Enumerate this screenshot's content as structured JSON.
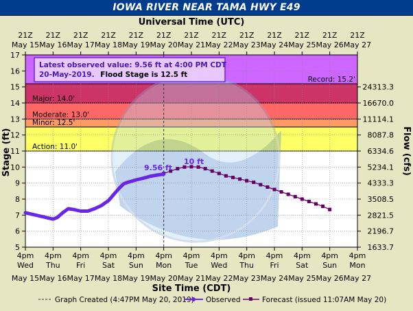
{
  "title": "IOWA RIVER NEAR TAMA HWY E49",
  "colors": {
    "observed": "#6a26e6",
    "forecast": "#660066",
    "record": "#cc66ff",
    "major": "#cc3366",
    "moderate": "#ff6666",
    "minor": "#ff9966",
    "action": "#ffff66",
    "background": "#e6e6c2",
    "title_bar": "#003c8c"
  },
  "chart_data": {
    "type": "line",
    "title": "IOWA RIVER NEAR TAMA HWY E49",
    "top_axis_label": "Universal Time (UTC)",
    "xlabel": "Site Time (CDT)",
    "ylabel": "Stage (ft)",
    "y2label": "Flow (cfs)",
    "x_range_days": [
      15,
      27
    ],
    "ylim": [
      5,
      17
    ],
    "y_ticks": [
      5,
      6,
      7,
      8,
      9,
      10,
      11,
      12,
      13,
      14,
      15,
      16,
      17
    ],
    "flow_ticks": [
      {
        "stage": 5.0,
        "label": "1633.7"
      },
      {
        "stage": 6.0,
        "label": "2196.7"
      },
      {
        "stage": 7.0,
        "label": "2821.5"
      },
      {
        "stage": 8.0,
        "label": "3508.5"
      },
      {
        "stage": 9.0,
        "label": "4333.3"
      },
      {
        "stage": 10.0,
        "label": "5234.1"
      },
      {
        "stage": 11.0,
        "label": "6334.6"
      },
      {
        "stage": 12.0,
        "label": "8087.8"
      },
      {
        "stage": 13.0,
        "label": "11114.1"
      },
      {
        "stage": 14.0,
        "label": "16670.0"
      },
      {
        "stage": 15.0,
        "label": "24313.3"
      }
    ],
    "utc_ticks": [
      {
        "time": "21Z",
        "date": "May 15"
      },
      {
        "time": "21Z",
        "date": "May 16"
      },
      {
        "time": "21Z",
        "date": "May 17"
      },
      {
        "time": "21Z",
        "date": "May 18"
      },
      {
        "time": "21Z",
        "date": "May 19"
      },
      {
        "time": "21Z",
        "date": "May 20"
      },
      {
        "time": "21Z",
        "date": "May 21"
      },
      {
        "time": "21Z",
        "date": "May 22"
      },
      {
        "time": "21Z",
        "date": "May 23"
      },
      {
        "time": "21Z",
        "date": "May 24"
      },
      {
        "time": "21Z",
        "date": "May 25"
      },
      {
        "time": "21Z",
        "date": "May 26"
      },
      {
        "time": "21Z",
        "date": "May 27"
      }
    ],
    "local_ticks": [
      {
        "time": "4pm",
        "dow": "Wed",
        "date": "May 15"
      },
      {
        "time": "4pm",
        "dow": "Thu",
        "date": "May 16"
      },
      {
        "time": "4pm",
        "dow": "Fri",
        "date": "May 17"
      },
      {
        "time": "4pm",
        "dow": "Sat",
        "date": "May 18"
      },
      {
        "time": "4pm",
        "dow": "Sun",
        "date": "May 19"
      },
      {
        "time": "4pm",
        "dow": "Mon",
        "date": "May 20"
      },
      {
        "time": "4pm",
        "dow": "Tue",
        "date": "May 21"
      },
      {
        "time": "4pm",
        "dow": "Wed",
        "date": "May 22"
      },
      {
        "time": "4pm",
        "dow": "Thu",
        "date": "May 23"
      },
      {
        "time": "4pm",
        "dow": "Fri",
        "date": "May 24"
      },
      {
        "time": "4pm",
        "dow": "Sat",
        "date": "May 25"
      },
      {
        "time": "4pm",
        "dow": "Sun",
        "date": "May 26"
      },
      {
        "time": "4pm",
        "dow": "Mon",
        "date": "May 27"
      }
    ],
    "flood_categories": [
      {
        "name": "Record",
        "label": "Record: 15.2'",
        "stage": 15.2
      },
      {
        "name": "Major",
        "label": "Major: 14.0'",
        "stage": 14.0
      },
      {
        "name": "Moderate",
        "label": "Moderate: 13.0'",
        "stage": 13.0
      },
      {
        "name": "Minor",
        "label": "Minor: 12.5'",
        "stage": 12.5
      },
      {
        "name": "Action",
        "label": "Action: 11.0'",
        "stage": 11.0
      }
    ],
    "info_box": {
      "line1": "Latest observed value: 9.56 ft at 4:00 PM CDT",
      "line2_a": "20-May-2019.",
      "line2_b": "Flood Stage is 12.5 ft"
    },
    "annotations": {
      "latest": "9.56 ft",
      "crest": "10 ft"
    },
    "graph_created_day": 20.0,
    "series": [
      {
        "name": "Observed",
        "note": "x = day of May, 4pm CDT",
        "x": [
          15.0,
          15.25,
          15.5,
          15.75,
          16.0,
          16.15,
          16.35,
          16.55,
          16.75,
          17.0,
          17.25,
          17.5,
          17.75,
          18.0,
          18.2,
          18.4,
          18.55,
          18.7,
          18.85,
          19.0,
          19.25,
          19.5,
          19.75,
          20.0
        ],
        "y": [
          7.15,
          7.05,
          6.95,
          6.85,
          6.75,
          6.85,
          7.15,
          7.4,
          7.35,
          7.25,
          7.25,
          7.4,
          7.6,
          7.9,
          8.3,
          8.7,
          8.95,
          9.05,
          9.12,
          9.2,
          9.3,
          9.42,
          9.5,
          9.56
        ]
      },
      {
        "name": "Forecast",
        "x": [
          20.0,
          20.25,
          20.5,
          20.75,
          21.0,
          21.25,
          21.5,
          21.75,
          22.0,
          22.25,
          22.5,
          22.75,
          23.0,
          23.25,
          23.5,
          23.75,
          24.0,
          24.25,
          24.5,
          24.75,
          25.0,
          25.25,
          25.5,
          25.75,
          26.0
        ],
        "y": [
          9.6,
          9.75,
          9.9,
          10.0,
          10.02,
          10.0,
          9.9,
          9.75,
          9.6,
          9.45,
          9.35,
          9.25,
          9.15,
          9.05,
          8.9,
          8.75,
          8.6,
          8.45,
          8.3,
          8.15,
          8.0,
          7.85,
          7.7,
          7.55,
          7.35
        ]
      }
    ]
  },
  "legend": {
    "graph_created": "Graph Created (4:47PM May 20, 2019)",
    "observed": "Observed",
    "forecast": "Forecast (issued 11:07AM May 20)"
  }
}
